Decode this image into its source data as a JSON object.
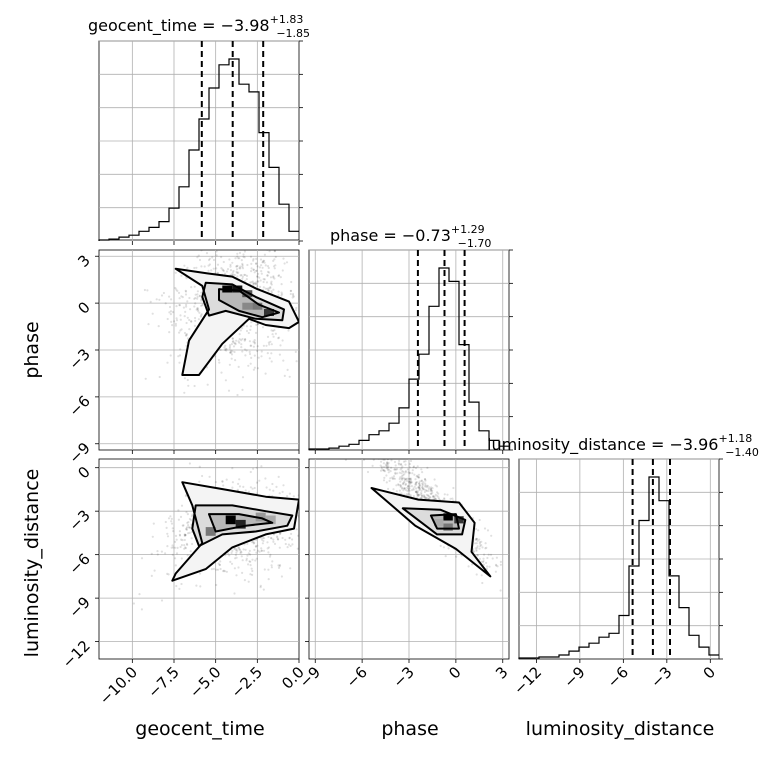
{
  "chart_data": {
    "type": "corner",
    "parameters": [
      "geocent_time",
      "phase",
      "luminosity_distance"
    ],
    "axis_labels": {
      "geocent_time": "geocent_time",
      "phase": "phase",
      "luminosity_distance": "luminosity_distance"
    },
    "ranges": {
      "geocent_time": [
        -12.0,
        0.0
      ],
      "phase": [
        -9.4,
        3.4
      ],
      "luminosity_distance": [
        -13.2,
        0.6
      ]
    },
    "ticks": {
      "geocent_time": {
        "values": [
          -10,
          -7.5,
          -5,
          -2.5,
          0
        ],
        "labels": [
          "−10.0",
          "−7.5",
          "−5.0",
          "−2.5",
          "0.0"
        ]
      },
      "phase": {
        "values": [
          -9,
          -6,
          -3,
          0,
          3
        ],
        "labels": [
          "−9",
          "−6",
          "−3",
          "0",
          "3"
        ]
      },
      "luminosity_distance": {
        "values": [
          -12,
          -9,
          -6,
          -3,
          0
        ],
        "labels": [
          "−12",
          "−9",
          "−6",
          "−3",
          "0"
        ]
      }
    },
    "titles": [
      {
        "param": "geocent_time",
        "median_text": "geocent_time = −3.98",
        "plus": "+1.83",
        "minus": "−1.85",
        "median": -3.98,
        "q_low": -5.83,
        "q_high": -2.15
      },
      {
        "param": "phase",
        "median_text": "phase = −0.73",
        "plus": "+1.29",
        "minus": "−1.70",
        "median": -0.73,
        "q_low": -2.43,
        "q_high": 0.56
      },
      {
        "param": "luminosity_distance",
        "median_text": "luminosity_distance = −3.96",
        "plus": "+1.18",
        "minus": "−1.40",
        "median": -3.96,
        "q_low": -5.36,
        "q_high": -2.78
      }
    ],
    "histograms": {
      "geocent_time": {
        "bins": [
          -12.0,
          -11.4,
          -10.8,
          -10.2,
          -9.6,
          -9.0,
          -8.4,
          -7.8,
          -7.2,
          -6.6,
          -6.0,
          -5.4,
          -4.8,
          -4.2,
          -3.6,
          -3.0,
          -2.4,
          -1.8,
          -1.2,
          -0.6,
          0.0
        ],
        "counts": [
          0.5,
          1,
          2,
          3,
          5,
          7,
          10,
          17,
          28,
          47,
          63,
          79,
          91,
          94,
          81,
          77,
          56,
          38,
          19,
          5
        ]
      },
      "phase": {
        "bins": [
          -9.4,
          -8.76,
          -8.12,
          -7.48,
          -6.84,
          -6.2,
          -5.56,
          -4.92,
          -4.28,
          -3.64,
          -3.0,
          -2.36,
          -1.72,
          -1.08,
          -0.44,
          0.2,
          0.84,
          1.48,
          2.12,
          2.76,
          3.4
        ],
        "counts": [
          0.5,
          0.5,
          1,
          2,
          3,
          5,
          8,
          10,
          14,
          22,
          37,
          50,
          75,
          95,
          88,
          55,
          25,
          10,
          5,
          2
        ]
      },
      "luminosity_distance": {
        "bins": [
          -13.2,
          -12.51,
          -11.82,
          -11.13,
          -10.44,
          -9.75,
          -9.06,
          -8.37,
          -7.68,
          -6.99,
          -6.3,
          -5.61,
          -4.92,
          -4.23,
          -3.54,
          -2.85,
          -2.16,
          -1.47,
          -0.78,
          -0.09,
          0.6
        ],
        "counts": [
          0.5,
          0.5,
          1,
          1,
          2,
          4,
          6,
          8,
          11,
          13,
          22,
          47,
          70,
          92,
          80,
          42,
          26,
          12,
          6,
          2
        ]
      }
    },
    "contours_2d": [
      {
        "x": "geocent_time",
        "y": "phase",
        "peak": [
          -4.0,
          0.6
        ],
        "levels": 3
      },
      {
        "x": "geocent_time",
        "y": "luminosity_distance",
        "peak": [
          -4.0,
          -3.7
        ],
        "levels": 3
      },
      {
        "x": "phase",
        "y": "luminosity_distance",
        "peak": [
          -0.5,
          -3.7
        ],
        "levels": 3
      }
    ],
    "grid": true
  }
}
